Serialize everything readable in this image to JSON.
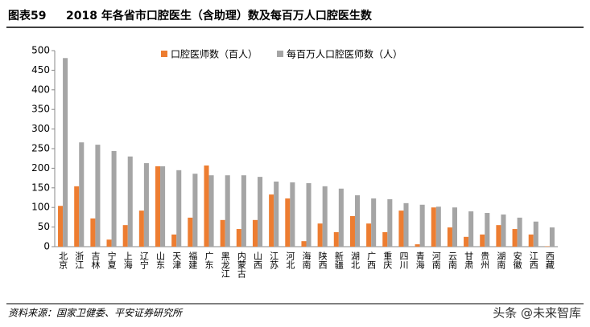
{
  "header": {
    "label": "图表59",
    "title": "2018 年各省市口腔医生（含助理）数及每百万人口腔医生数"
  },
  "chart_data": {
    "type": "bar",
    "legend": "top",
    "categories": [
      "北京",
      "浙江",
      "吉林",
      "宁夏",
      "上海",
      "辽宁",
      "山东",
      "天津",
      "福建",
      "广东",
      "黑龙江",
      "内蒙古",
      "山西",
      "江苏",
      "河北",
      "海南",
      "陕西",
      "新疆",
      "湖北",
      "广西",
      "重庆",
      "四川",
      "青海",
      "河南",
      "云南",
      "甘肃",
      "贵州",
      "湖南",
      "安徽",
      "江西",
      "西藏"
    ],
    "series": [
      {
        "name": "口腔医师数（百人）",
        "color": "#ed7d31",
        "values": [
          104,
          154,
          72,
          18,
          55,
          92,
          205,
          31,
          74,
          207,
          68,
          45,
          68,
          133,
          123,
          14,
          59,
          37,
          78,
          59,
          37,
          92,
          6,
          100,
          49,
          25,
          31,
          55,
          45,
          31,
          1
        ]
      },
      {
        "name": "每百万人口腔医师数（人）",
        "color": "#a5a5a5",
        "values": [
          481,
          266,
          260,
          244,
          230,
          213,
          205,
          195,
          186,
          182,
          182,
          182,
          178,
          166,
          164,
          162,
          154,
          148,
          131,
          123,
          121,
          111,
          107,
          102,
          100,
          90,
          86,
          82,
          74,
          64,
          49
        ]
      }
    ],
    "ylim": [
      0,
      500
    ],
    "yticks": [
      0,
      50,
      100,
      150,
      200,
      250,
      300,
      350,
      400,
      450,
      500
    ],
    "grid": false
  },
  "footer": {
    "source": "资料来源：国家卫健委、平安证券研究所",
    "watermark": "头条 @未来智库"
  }
}
